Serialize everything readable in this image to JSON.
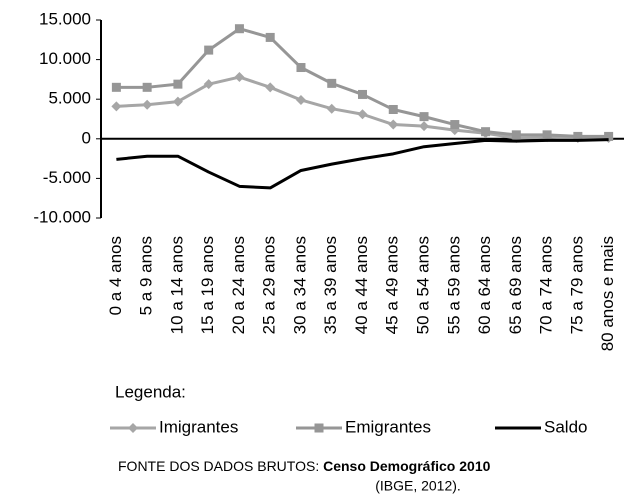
{
  "chart_data": {
    "type": "line",
    "categories": [
      "0 a 4 anos",
      "5 a 9 anos",
      "10 a 14 anos",
      "15 a 19 anos",
      "20 a 24 anos",
      "25 a 29 anos",
      "30 a 34 anos",
      "35 a 39 anos",
      "40 a 44 anos",
      "45 a 49 anos",
      "50 a 54 anos",
      "55 a 59 anos",
      "60 a 64 anos",
      "65 a 69 anos",
      "70 a 74 anos",
      "75 a 79 anos",
      "80 anos e mais"
    ],
    "series": [
      {
        "name": "Imigrantes",
        "color": "#a6a6a6",
        "marker": "diamond",
        "values": [
          4100,
          4300,
          4700,
          6900,
          7800,
          6500,
          4900,
          3800,
          3100,
          1800,
          1600,
          1100,
          700,
          100,
          200,
          100,
          100
        ]
      },
      {
        "name": "Emigrantes",
        "color": "#969696",
        "marker": "square",
        "values": [
          6500,
          6500,
          6900,
          11200,
          13900,
          12800,
          9000,
          7000,
          5600,
          3700,
          2800,
          1800,
          900,
          500,
          500,
          300,
          300
        ]
      },
      {
        "name": "Saldo",
        "color": "#000000",
        "marker": "none",
        "values": [
          -2600,
          -2200,
          -2200,
          -4200,
          -6000,
          -6200,
          -4000,
          -3200,
          -2500,
          -1900,
          -1000,
          -600,
          -200,
          -300,
          -200,
          -200,
          -100
        ]
      }
    ],
    "ylim": [
      -10000,
      15000
    ],
    "yticks": [
      {
        "value": -10000,
        "label": "-10.000"
      },
      {
        "value": -5000,
        "label": "-5.000"
      },
      0,
      {
        "value": 5000,
        "label": "5.000"
      },
      {
        "value": 10000,
        "label": "10.000"
      },
      {
        "value": 15000,
        "label": "15.000"
      }
    ],
    "grid": false,
    "legend_title": "Legenda:",
    "source_prefix": "FONTE DOS DADOS BRUTOS: ",
    "source_bold": "Censo Demográfico 2010",
    "source_line2": "(IBGE, 2012)."
  }
}
